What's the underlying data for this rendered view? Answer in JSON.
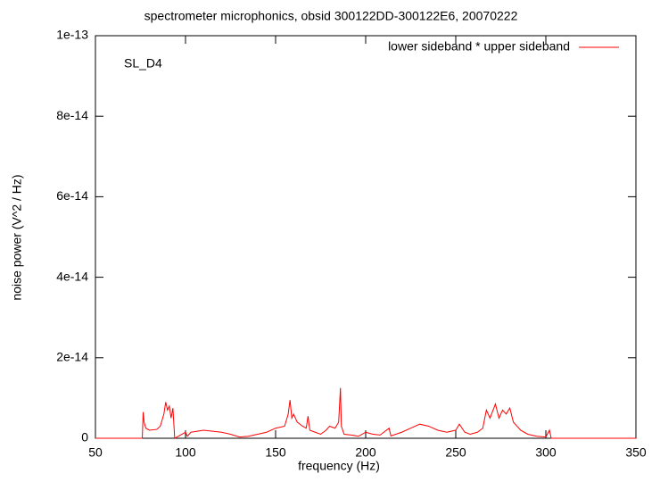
{
  "chart_data": {
    "type": "line",
    "title": "spectrometer microphonics, obsid 300122DD-300122E6, 20070222",
    "annotation": "SL_D4",
    "x_label": "frequency (Hz)",
    "y_label": "noise power (V^2 / Hz)",
    "xlim": [
      50,
      350
    ],
    "xticks": [
      50,
      100,
      150,
      200,
      250,
      300,
      350
    ],
    "ylim": [
      0,
      1e-13
    ],
    "yticks": [
      0,
      {
        "value": 2e-14,
        "label": "2e-14"
      },
      {
        "value": 4e-14,
        "label": "4e-14"
      },
      {
        "value": 6e-14,
        "label": "6e-14"
      },
      {
        "value": 8e-14,
        "label": "8e-14"
      },
      {
        "value": 1e-13,
        "label": "1e-13"
      }
    ],
    "legend": "top-right",
    "x": [
      50,
      76,
      76.5,
      77,
      78,
      80,
      84,
      86,
      88,
      89,
      90,
      91,
      92,
      93,
      94,
      100,
      101,
      103,
      110,
      120,
      125,
      130,
      135,
      140,
      145,
      150,
      155,
      157,
      158,
      159,
      160,
      162,
      165,
      167,
      168,
      169,
      172,
      175,
      178,
      180,
      183,
      185,
      186,
      186.5,
      188,
      192,
      196,
      200,
      204,
      208,
      213,
      214,
      220,
      225,
      230,
      235,
      240,
      245,
      250,
      252,
      255,
      258,
      262,
      265,
      267,
      269,
      272,
      274,
      276,
      278,
      280,
      282,
      284,
      286,
      290,
      295,
      300,
      302,
      303,
      350
    ],
    "series": [
      {
        "name": "lower sideband * upper sideband",
        "color": "#ff0000",
        "values": [
          0,
          0,
          6.5e-15,
          4e-15,
          2.5e-15,
          2e-15,
          2.2e-15,
          3e-15,
          6e-15,
          9e-15,
          7e-15,
          8e-15,
          5e-15,
          7.5e-15,
          0,
          1.5e-15,
          5e-16,
          1.5e-15,
          2e-15,
          1.5e-15,
          1e-15,
          3e-16,
          5e-16,
          1e-15,
          1.5e-15,
          2.5e-15,
          3e-15,
          6e-15,
          9.5e-15,
          5e-15,
          6e-15,
          4e-15,
          3e-15,
          2.5e-15,
          5.5e-15,
          2e-15,
          1.5e-15,
          1e-15,
          2e-15,
          3e-15,
          2.5e-15,
          4e-15,
          1.25e-14,
          3e-15,
          1e-15,
          8e-16,
          5e-16,
          1.5e-15,
          1e-15,
          8e-16,
          2.5e-15,
          6e-16,
          1.5e-15,
          2.5e-15,
          3.5e-15,
          3e-15,
          2e-15,
          1.5e-15,
          2e-15,
          3.5e-15,
          1.5e-15,
          1e-15,
          1.5e-15,
          2.5e-15,
          7e-15,
          5e-15,
          8.5e-15,
          5e-15,
          7e-15,
          6e-15,
          7.5e-15,
          4e-15,
          3e-15,
          2e-15,
          1e-15,
          5e-16,
          3e-16,
          2e-15,
          0,
          0
        ]
      }
    ]
  }
}
